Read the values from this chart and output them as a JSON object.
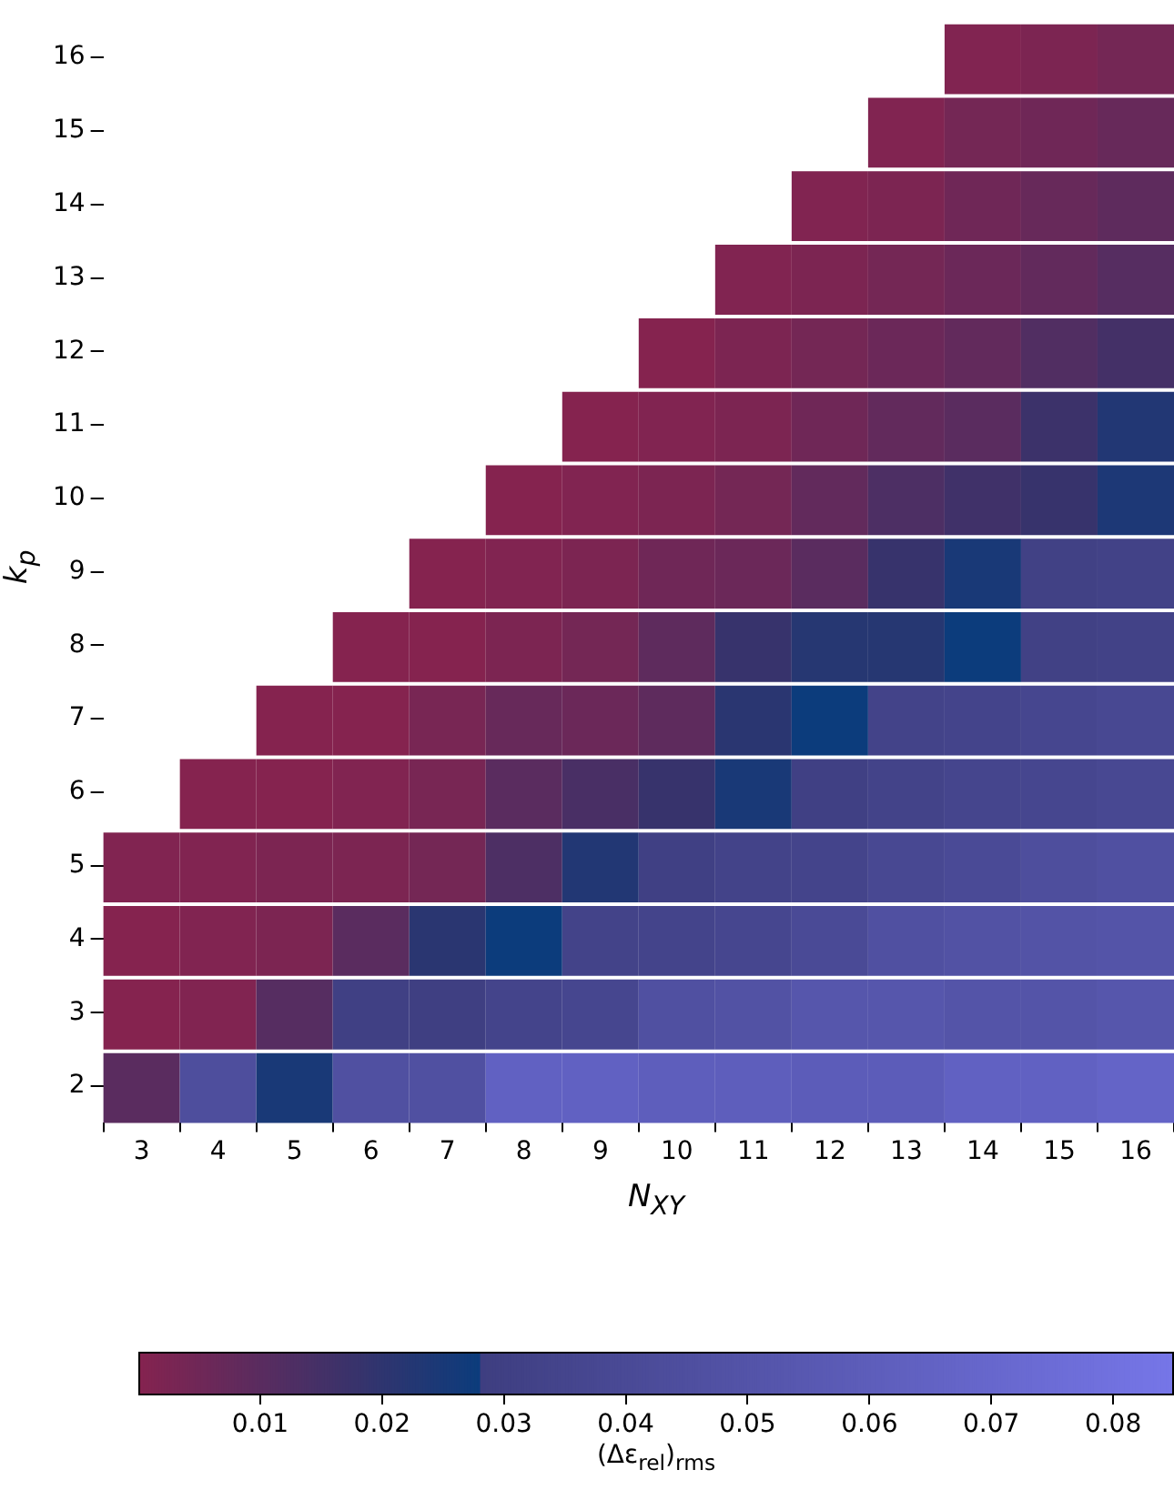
{
  "chart_data": {
    "type": "heatmap",
    "xlabel": "N$_{XY}$",
    "ylabel": "k$_{p}$",
    "clabel": "(Δε$_{rel}$)$_{rms}$",
    "categories": [
      "3",
      "4",
      "5",
      "6",
      "7",
      "8",
      "9",
      "10",
      "11",
      "12",
      "13",
      "14",
      "15",
      "16"
    ],
    "y_categories": [
      "16",
      "15",
      "14",
      "13",
      "12",
      "11",
      "10",
      "9",
      "8",
      "7",
      "6",
      "5",
      "4",
      "3",
      "2"
    ],
    "cells": [
      [
        null,
        null,
        null,
        null,
        null,
        null,
        null,
        null,
        null,
        null,
        null,
        0.001,
        0.002,
        0.004
      ],
      [
        null,
        null,
        null,
        null,
        null,
        null,
        null,
        null,
        null,
        null,
        0.001,
        0.004,
        0.005,
        0.007
      ],
      [
        null,
        null,
        null,
        null,
        null,
        null,
        null,
        null,
        null,
        0.001,
        0.002,
        0.005,
        0.007,
        0.009
      ],
      [
        null,
        null,
        null,
        null,
        null,
        null,
        null,
        null,
        0.001,
        0.002,
        0.004,
        0.006,
        0.008,
        0.011
      ],
      [
        null,
        null,
        null,
        null,
        null,
        null,
        null,
        0.0,
        0.002,
        0.004,
        0.006,
        0.008,
        0.012,
        0.015
      ],
      [
        null,
        null,
        null,
        null,
        null,
        null,
        0.0,
        0.001,
        0.002,
        0.005,
        0.008,
        0.01,
        0.017,
        0.023
      ],
      [
        null,
        null,
        null,
        null,
        null,
        0.0,
        0.001,
        0.002,
        0.004,
        0.008,
        0.013,
        0.016,
        0.018,
        0.024
      ],
      [
        null,
        null,
        null,
        null,
        0.0,
        0.001,
        0.002,
        0.005,
        0.006,
        0.01,
        0.018,
        0.025,
        0.031,
        0.032
      ],
      [
        null,
        null,
        null,
        0.0,
        0.0,
        0.002,
        0.004,
        0.009,
        0.018,
        0.022,
        0.022,
        0.028,
        0.031,
        0.032
      ],
      [
        null,
        null,
        0.0,
        0.0,
        0.003,
        0.007,
        0.006,
        0.009,
        0.021,
        0.028,
        0.033,
        0.034,
        0.036,
        0.038
      ],
      [
        null,
        0.0,
        0.0,
        0.001,
        0.003,
        0.01,
        0.014,
        0.018,
        0.025,
        0.03,
        0.033,
        0.035,
        0.036,
        0.038
      ],
      [
        0.001,
        0.001,
        0.002,
        0.002,
        0.004,
        0.013,
        0.023,
        0.03,
        0.033,
        0.034,
        0.038,
        0.04,
        0.044,
        0.046
      ],
      [
        0.0,
        0.001,
        0.002,
        0.01,
        0.021,
        0.028,
        0.033,
        0.034,
        0.036,
        0.04,
        0.046,
        0.048,
        0.049,
        0.05
      ],
      [
        0.0,
        0.001,
        0.011,
        0.03,
        0.029,
        0.034,
        0.036,
        0.046,
        0.048,
        0.052,
        0.052,
        0.05,
        0.05,
        0.052
      ],
      [
        0.01,
        0.044,
        0.025,
        0.046,
        0.046,
        0.064,
        0.064,
        0.061,
        0.061,
        0.059,
        0.059,
        0.064,
        0.064,
        0.067
      ]
    ],
    "clim": [
      0,
      0.085
    ],
    "cticks": [
      0.01,
      0.02,
      0.03,
      0.04,
      0.05,
      0.06,
      0.07,
      0.08
    ]
  }
}
